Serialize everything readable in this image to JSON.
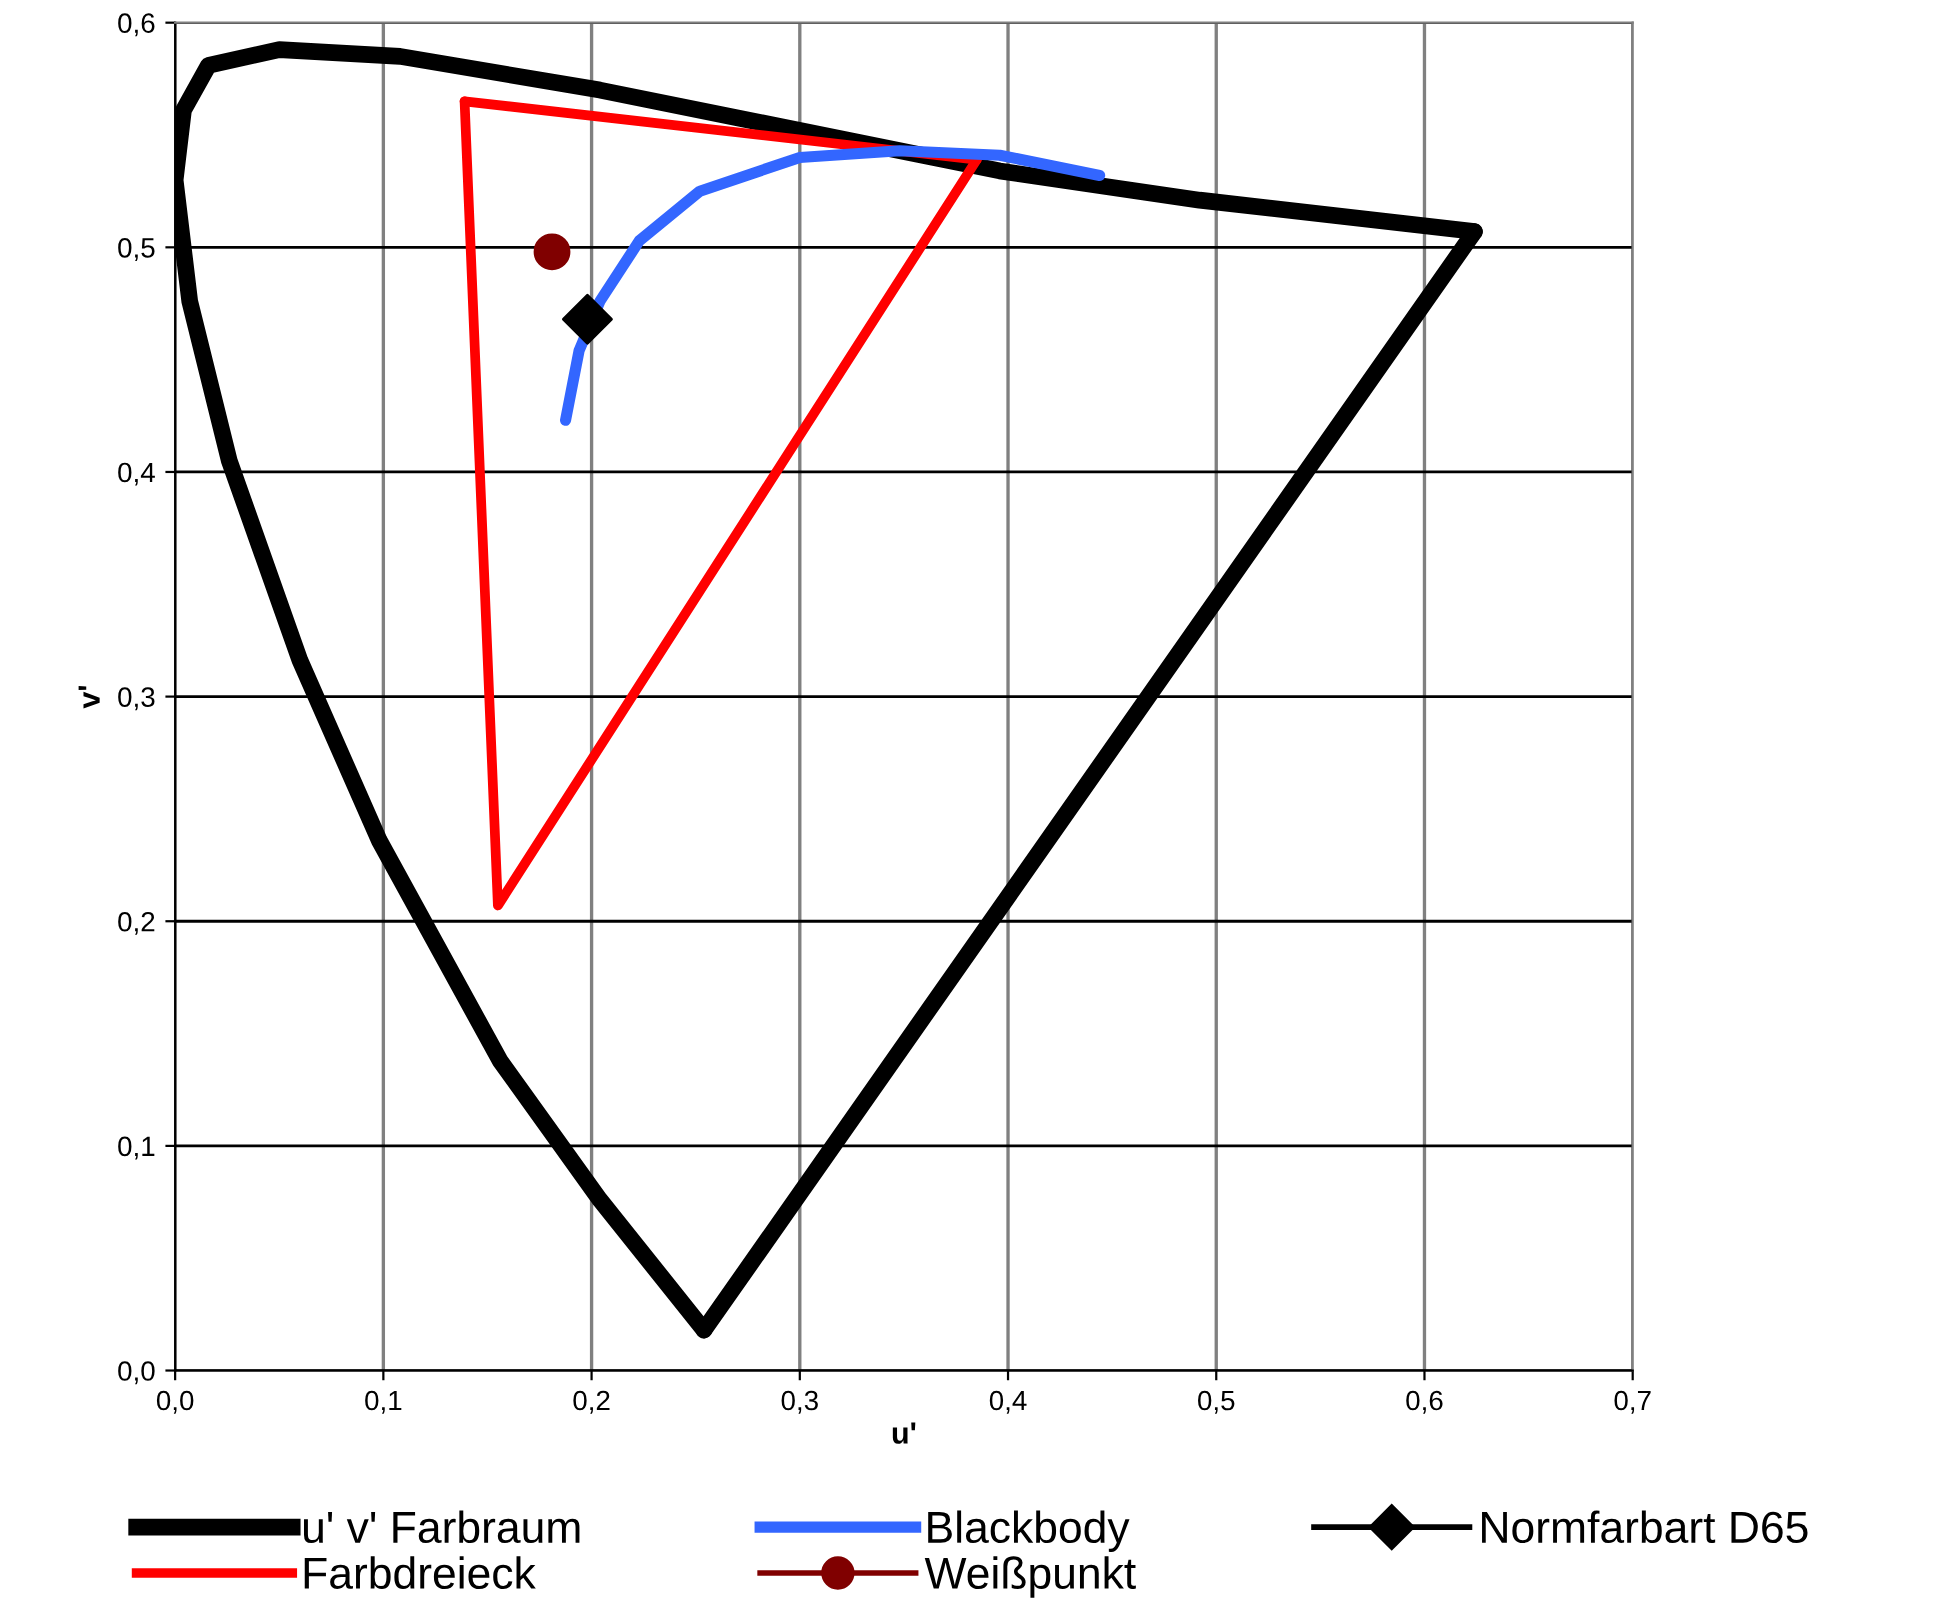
{
  "chart_data": {
    "type": "line",
    "xlabel": "u'",
    "ylabel": "v'",
    "xlim": [
      0,
      0.7
    ],
    "ylim": [
      0,
      0.6
    ],
    "xticks": [
      {
        "value": 0,
        "label": "0,0"
      },
      {
        "value": 0.1,
        "label": "0,1"
      },
      {
        "value": 0.2,
        "label": "0,2"
      },
      {
        "value": 0.3,
        "label": "0,3"
      },
      {
        "value": 0.4,
        "label": "0,4"
      },
      {
        "value": 0.5,
        "label": "0,5"
      },
      {
        "value": 0.6,
        "label": "0,6"
      },
      {
        "value": 0.7,
        "label": "0,7"
      }
    ],
    "yticks": [
      {
        "value": 0,
        "label": "0,0"
      },
      {
        "value": 0.1,
        "label": "0,1"
      },
      {
        "value": 0.2,
        "label": "0,2"
      },
      {
        "value": 0.3,
        "label": "0,3"
      },
      {
        "value": 0.4,
        "label": "0,4"
      },
      {
        "value": 0.5,
        "label": "0,5"
      },
      {
        "value": 0.6,
        "label": "0,6"
      }
    ],
    "grid": true,
    "legend": "bottom",
    "series": [
      {
        "name": "u' v' Farbraum",
        "color": "#000000",
        "marker": "none",
        "x": [
          0.254,
          0.204,
          0.156,
          0.098,
          0.06,
          0.026,
          0.007,
          0.0,
          0.004,
          0.016,
          0.05,
          0.108,
          0.204,
          0.3,
          0.396,
          0.492,
          0.624
        ],
        "values": [
          0.018,
          0.076,
          0.138,
          0.236,
          0.316,
          0.405,
          0.476,
          0.53,
          0.561,
          0.581,
          0.588,
          0.585,
          0.57,
          0.552,
          0.534,
          0.521,
          0.507
        ]
      },
      {
        "color": "#000000",
        "marker": "none",
        "x": [
          0.254,
          0.624
        ],
        "values": [
          0.018,
          0.507
        ]
      },
      {
        "name": "Farbdreieck",
        "color": "#ff0000",
        "marker": "none",
        "x": [
          0.139,
          0.385
        ],
        "values": [
          0.565,
          0.539
        ]
      },
      {
        "color": "#ff0000",
        "marker": "none",
        "x": [
          0.139,
          0.155,
          0.385
        ],
        "values": [
          0.565,
          0.207,
          0.539
        ]
      },
      {
        "name": "Blackbody",
        "color": "#3366ff",
        "marker": "none",
        "x": [
          0.1875,
          0.194,
          0.204,
          0.223,
          0.252,
          0.3,
          0.348,
          0.396,
          0.444
        ],
        "values": [
          0.423,
          0.454,
          0.476,
          0.503,
          0.525,
          0.54,
          0.543,
          0.541,
          0.532
        ]
      },
      {
        "name": "Weißpunkt",
        "type": "scatter",
        "color": "#800000",
        "marker": "circle",
        "x": [
          0.181
        ],
        "values": [
          0.498
        ]
      },
      {
        "name": "Normfarbart D65",
        "type": "scatter",
        "color": "#000000",
        "marker": "diamond",
        "x": [
          0.198
        ],
        "values": [
          0.468
        ]
      }
    ]
  }
}
